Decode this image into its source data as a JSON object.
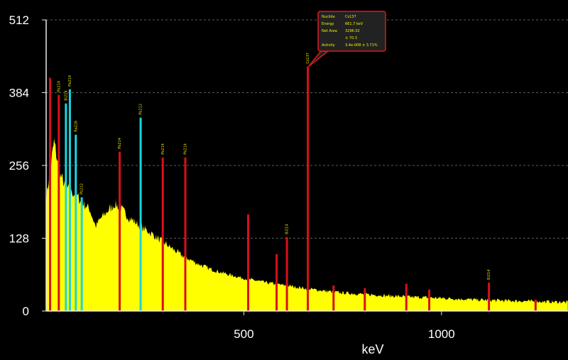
{
  "chart_data": {
    "type": "area",
    "xlabel": "keV",
    "xlim": [
      0,
      1320
    ],
    "ylim": [
      0,
      512
    ],
    "x_ticks": [
      500,
      1000
    ],
    "y_ticks": [
      0,
      128,
      256,
      384,
      512
    ],
    "grid": "horizontal dashed",
    "colors": {
      "background": "#000000",
      "spectrum_fill": "#ffff00",
      "spectrum_edge": "#1a1a00",
      "peak_red": "#d8101a",
      "peak_cyan": "#18d6e0",
      "grid": "#5a5a5a",
      "tooltip_bg": "#222222",
      "tooltip_border": "#e01818"
    },
    "continuum": [
      [
        0,
        200
      ],
      [
        20,
        300
      ],
      [
        35,
        240
      ],
      [
        55,
        215
      ],
      [
        75,
        205
      ],
      [
        95,
        190
      ],
      [
        110,
        180
      ],
      [
        125,
        150
      ],
      [
        140,
        165
      ],
      [
        160,
        180
      ],
      [
        175,
        190
      ],
      [
        190,
        180
      ],
      [
        210,
        165
      ],
      [
        240,
        150
      ],
      [
        270,
        135
      ],
      [
        300,
        120
      ],
      [
        340,
        100
      ],
      [
        380,
        85
      ],
      [
        420,
        73
      ],
      [
        460,
        65
      ],
      [
        500,
        58
      ],
      [
        560,
        50
      ],
      [
        620,
        44
      ],
      [
        680,
        38
      ],
      [
        740,
        33
      ],
      [
        800,
        30
      ],
      [
        900,
        26
      ],
      [
        1000,
        23
      ],
      [
        1100,
        20
      ],
      [
        1200,
        18
      ],
      [
        1320,
        16
      ]
    ],
    "peaks": [
      {
        "energy": 10,
        "height": 410,
        "color": "red",
        "label": ""
      },
      {
        "energy": 32,
        "height": 380,
        "color": "red",
        "label": "Pb214"
      },
      {
        "energy": 50,
        "height": 365,
        "color": "cyan",
        "label": "Bi214"
      },
      {
        "energy": 60,
        "height": 390,
        "color": "cyan",
        "label": "Pb214"
      },
      {
        "energy": 75,
        "height": 310,
        "color": "cyan",
        "label": "Ra226"
      },
      {
        "energy": 90,
        "height": 200,
        "color": "cyan",
        "label": "Pb212"
      },
      {
        "energy": 186,
        "height": 280,
        "color": "red",
        "label": "Pb214"
      },
      {
        "energy": 239,
        "height": 340,
        "color": "cyan",
        "label": "Pb212"
      },
      {
        "energy": 295,
        "height": 270,
        "color": "red",
        "label": "Pb214"
      },
      {
        "energy": 352,
        "height": 270,
        "color": "red",
        "label": "Pb214"
      },
      {
        "energy": 511,
        "height": 170,
        "color": "red",
        "label": ""
      },
      {
        "energy": 583,
        "height": 100,
        "color": "red",
        "label": ""
      },
      {
        "energy": 609,
        "height": 130,
        "color": "red",
        "label": "Bi214"
      },
      {
        "energy": 662,
        "height": 430,
        "color": "red",
        "label": "Cs137"
      },
      {
        "energy": 727,
        "height": 45,
        "color": "red",
        "label": ""
      },
      {
        "energy": 806,
        "height": 40,
        "color": "red",
        "label": ""
      },
      {
        "energy": 911,
        "height": 48,
        "color": "red",
        "label": ""
      },
      {
        "energy": 969,
        "height": 38,
        "color": "red",
        "label": ""
      },
      {
        "energy": 1120,
        "height": 50,
        "color": "red",
        "label": "Bi214"
      },
      {
        "energy": 1238,
        "height": 20,
        "color": "red",
        "label": ""
      }
    ],
    "tooltip": {
      "anchor_energy": 662,
      "rows": [
        {
          "key": "Nuclide",
          "value": "Cs137"
        },
        {
          "key": "Energy",
          "value": "661.7 keV"
        },
        {
          "key": "Net Area",
          "value": "3296.02"
        },
        {
          "key": "",
          "value": "± 70.3"
        },
        {
          "key": "Activity",
          "value": "3.4e-008 ± 3.71%"
        }
      ]
    }
  }
}
